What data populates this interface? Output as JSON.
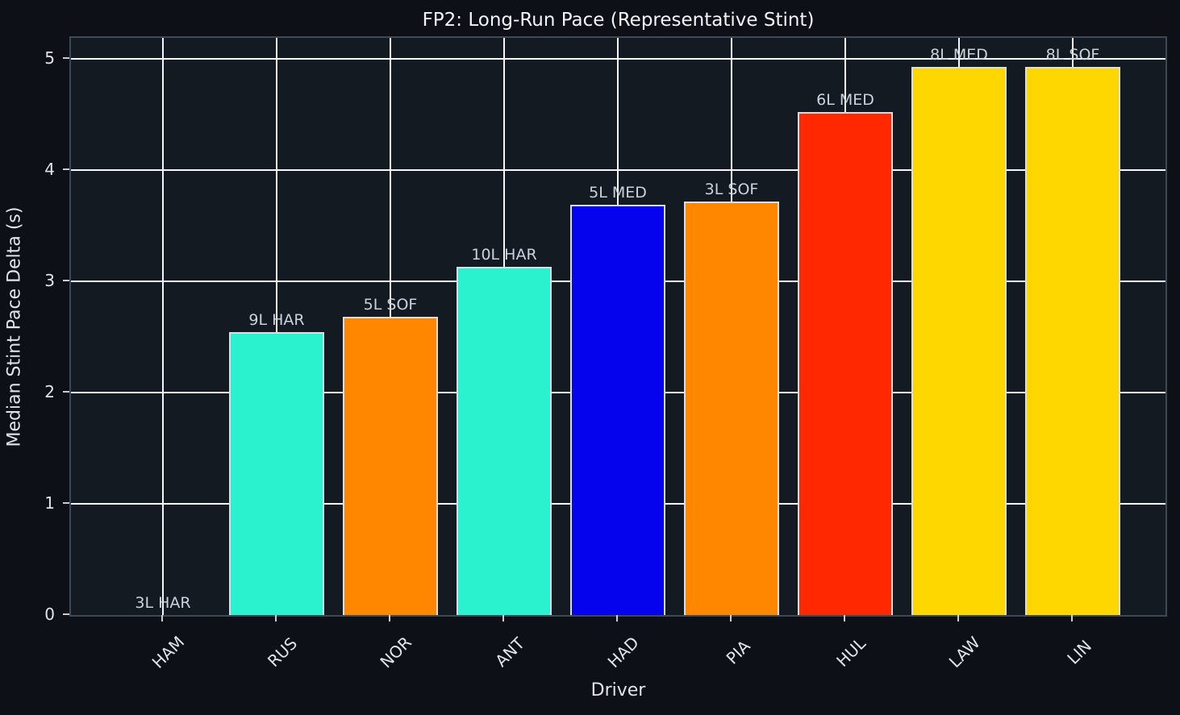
{
  "chart_data": {
    "type": "bar",
    "title": "FP2: Long-Run Pace (Representative Stint)",
    "xlabel": "Driver",
    "ylabel": "Median Stint Pace Delta (s)",
    "ylim": [
      0,
      5.18
    ],
    "yticks": [
      0,
      1,
      2,
      3,
      4,
      5
    ],
    "grid": true,
    "legend": "none",
    "categories": [
      "HAM",
      "RUS",
      "NOR",
      "ANT",
      "HAD",
      "PIA",
      "HUL",
      "LAW",
      "LIN"
    ],
    "values": [
      0.0,
      2.54,
      2.68,
      3.13,
      3.69,
      3.72,
      4.52,
      4.93,
      4.93
    ],
    "bar_labels": [
      "3L HAR",
      "9L HAR",
      "5L SOF",
      "10L HAR",
      "5L MED",
      "3L SOF",
      "6L MED",
      "8L MED",
      "8L SOF"
    ],
    "bar_colors": [
      "#141a22",
      "#2af2ce",
      "#ff8700",
      "#2af2ce",
      "#0502ee",
      "#ff8700",
      "#ff2800",
      "#ffd700",
      "#ffd700"
    ],
    "colors": {
      "figure_background": "#0d1117",
      "axes_background": "#141a22",
      "gridline": "#f5f6f8",
      "bar_edge": "#d9dde6",
      "text": "#dfe3ec",
      "title_text": "#f2f4f8"
    }
  }
}
